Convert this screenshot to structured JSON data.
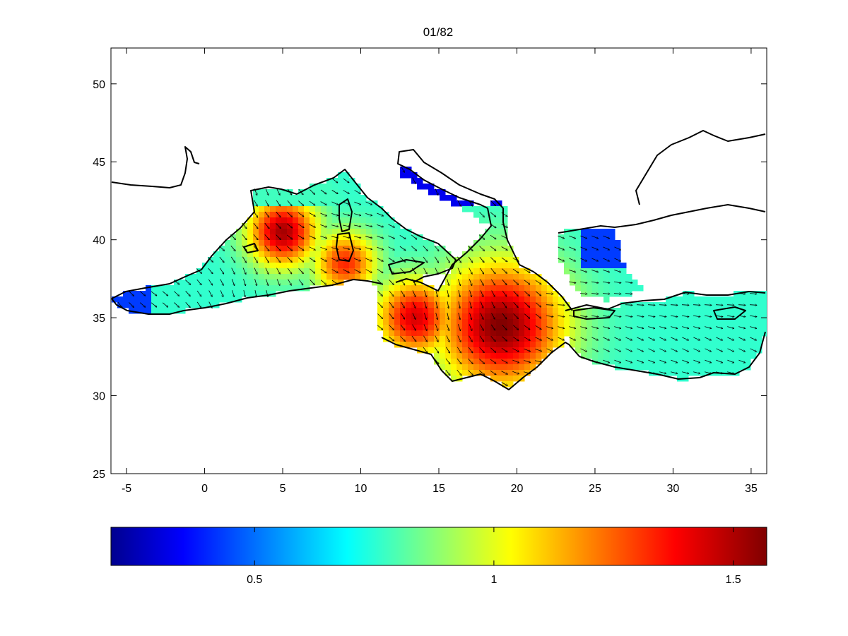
{
  "chart_data": {
    "type": "heatmap",
    "title": "01/82",
    "xlabel": "",
    "ylabel": "",
    "xlim": [
      -6,
      36
    ],
    "ylim": [
      25,
      52.3
    ],
    "xticks": [
      -5,
      0,
      5,
      10,
      15,
      20,
      25,
      30,
      35
    ],
    "yticks": [
      25,
      30,
      35,
      40,
      45,
      50
    ],
    "grid": false,
    "colormap": "jet",
    "colorbar": {
      "orientation": "horizontal",
      "location": "bottom",
      "clim": [
        0.2,
        1.57
      ],
      "ticks": [
        0.5,
        1,
        1.5
      ],
      "tick_labels": [
        "0.5",
        "1",
        "1.5"
      ]
    },
    "field_maxima": [
      {
        "lon": 19,
        "lat": 34.5,
        "value": 1.57
      },
      {
        "lon": 5,
        "lat": 40.5,
        "value": 1.52
      }
    ],
    "field_minima": [
      {
        "lon": 13,
        "lat": 44,
        "value": 0.3
      },
      {
        "lon": 25.5,
        "lat": 39.5,
        "value": 0.35
      },
      {
        "lon": -5,
        "lat": 35.8,
        "value": 0.4
      }
    ],
    "vector_field": "arrows showing flow direction, predominantly southeastward over the basin"
  }
}
